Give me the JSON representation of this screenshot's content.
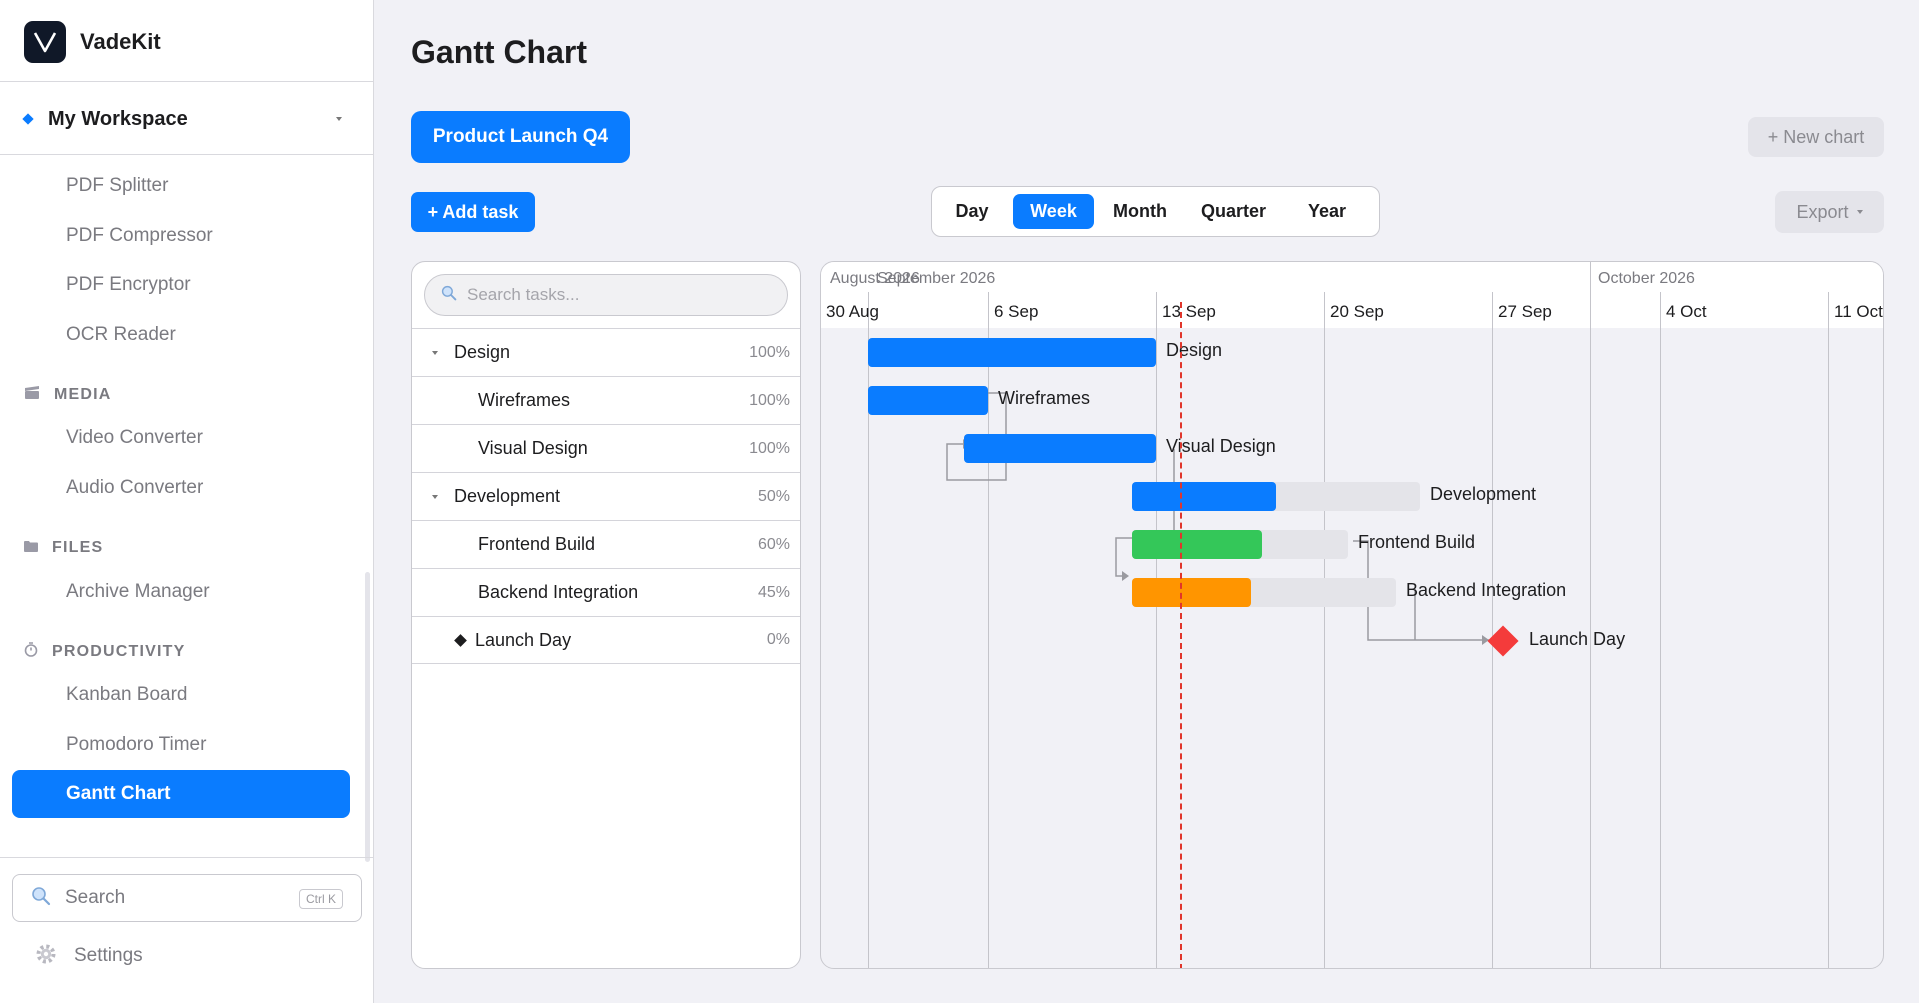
{
  "app": {
    "name": "VadeKit"
  },
  "sidebar": {
    "workspace": "My Workspace",
    "items_pdf": [
      "PDF Splitter",
      "PDF Compressor",
      "PDF Encryptor",
      "OCR Reader"
    ],
    "sections": {
      "media": {
        "title": "MEDIA",
        "items": [
          "Video Converter",
          "Audio Converter"
        ]
      },
      "files": {
        "title": "FILES",
        "items": [
          "Archive Manager"
        ]
      },
      "productivity": {
        "title": "PRODUCTIVITY",
        "items": [
          "Kanban Board",
          "Pomodoro Timer"
        ]
      }
    },
    "active_item": "Gantt Chart",
    "search_label": "Search",
    "search_shortcut": "Ctrl K",
    "settings_label": "Settings"
  },
  "main": {
    "title": "Gantt Chart",
    "chart_tab": "Product Launch Q4",
    "new_chart": "+ New chart",
    "add_task": "+ Add task",
    "export": "Export",
    "scales": [
      "Day",
      "Week",
      "Month",
      "Quarter",
      "Year"
    ],
    "active_scale": "Week",
    "search_placeholder": "Search tasks..."
  },
  "tasks": [
    {
      "name": "Design",
      "pct": "100%",
      "kind": "group"
    },
    {
      "name": "Wireframes",
      "pct": "100%",
      "kind": "task"
    },
    {
      "name": "Visual Design",
      "pct": "100%",
      "kind": "task"
    },
    {
      "name": "Development",
      "pct": "50%",
      "kind": "group"
    },
    {
      "name": "Frontend Build",
      "pct": "60%",
      "kind": "task"
    },
    {
      "name": "Backend Integration",
      "pct": "45%",
      "kind": "task"
    },
    {
      "name": "Launch Day",
      "pct": "0%",
      "kind": "milestone"
    }
  ],
  "timeline": {
    "months": [
      "August 2026",
      "September 2026",
      "October 2026"
    ],
    "weeks": [
      "30 Aug",
      "6 Sep",
      "13 Sep",
      "20 Sep",
      "27 Sep",
      "4 Oct",
      "11 Oct"
    ]
  },
  "colors": {
    "accent": "#0a7cff",
    "green": "#34c759",
    "orange": "#ff9500",
    "milestone": "#f43b3b",
    "today": "#e0352b"
  }
}
